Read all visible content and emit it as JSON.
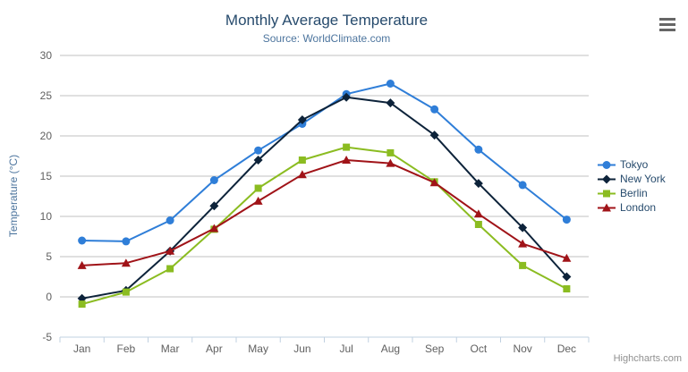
{
  "chart_data": {
    "type": "line",
    "title": "Monthly Average Temperature",
    "subtitle": "Source: WorldClimate.com",
    "xlabel": "",
    "ylabel": "Temperature (°C)",
    "categories": [
      "Jan",
      "Feb",
      "Mar",
      "Apr",
      "May",
      "Jun",
      "Jul",
      "Aug",
      "Sep",
      "Oct",
      "Nov",
      "Dec"
    ],
    "ylim": [
      -5,
      30
    ],
    "yticks": [
      -5,
      0,
      5,
      10,
      15,
      20,
      25,
      30
    ],
    "grid": true,
    "legend_position": "right",
    "series": [
      {
        "name": "Tokyo",
        "color": "#2f7ed8",
        "marker": "circle",
        "values": [
          7.0,
          6.9,
          9.5,
          14.5,
          18.2,
          21.5,
          25.2,
          26.5,
          23.3,
          18.3,
          13.9,
          9.6
        ]
      },
      {
        "name": "New York",
        "color": "#0d233a",
        "marker": "diamond",
        "values": [
          -0.2,
          0.8,
          5.7,
          11.3,
          17.0,
          22.0,
          24.8,
          24.1,
          20.1,
          14.1,
          8.6,
          2.5
        ]
      },
      {
        "name": "Berlin",
        "color": "#8bbc21",
        "marker": "square",
        "values": [
          -0.9,
          0.6,
          3.5,
          8.4,
          13.5,
          17.0,
          18.6,
          17.9,
          14.3,
          9.0,
          3.9,
          1.0
        ]
      },
      {
        "name": "London",
        "color": "#a01318",
        "marker": "triangle",
        "values": [
          3.9,
          4.2,
          5.7,
          8.5,
          11.9,
          15.2,
          17.0,
          16.6,
          14.2,
          10.3,
          6.6,
          4.8
        ]
      }
    ]
  },
  "colors": {
    "title": "#274b6d",
    "subtitle": "#4d759e",
    "y_axis_title": "#4d759e",
    "axis_label": "#606060",
    "gridline": "#c0c0c0",
    "axis_line": "#c0d0e0",
    "legend_text": "#274b6d",
    "credits": "#909090",
    "menu_icon": "#666666",
    "background": "#ffffff"
  },
  "credits_label": "Highcharts.com"
}
